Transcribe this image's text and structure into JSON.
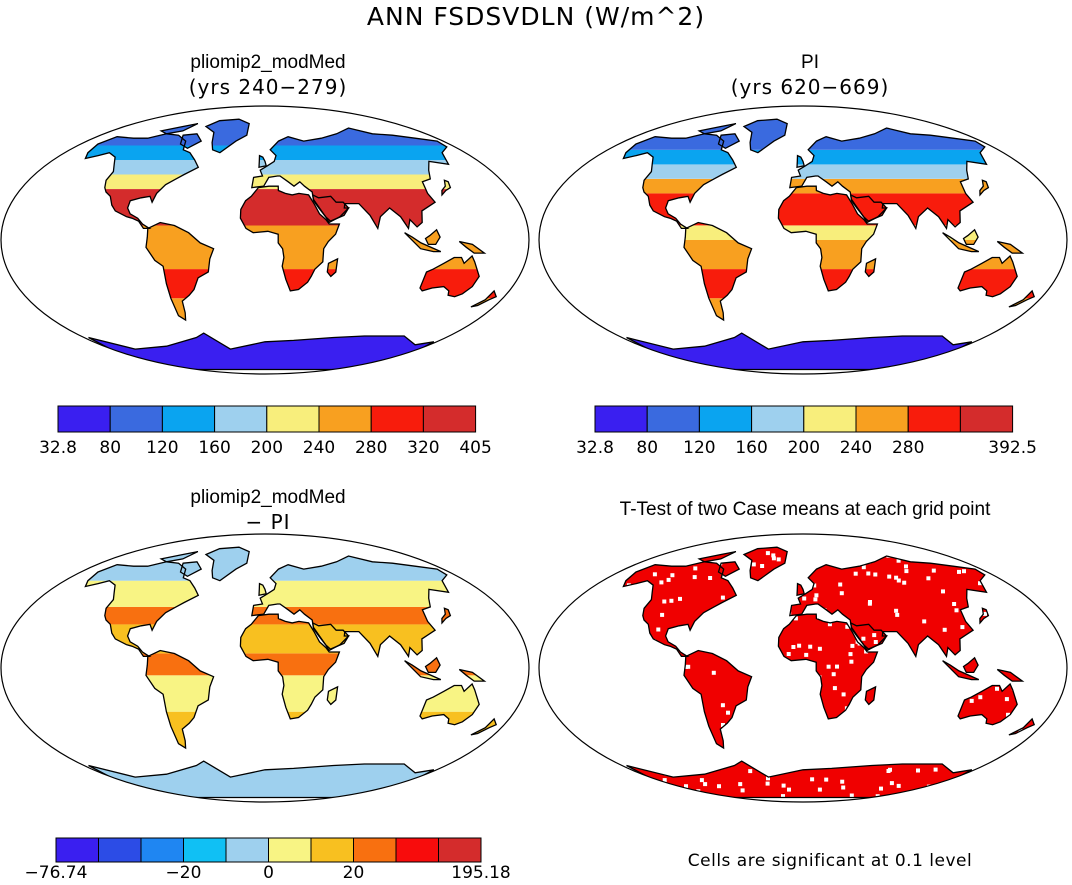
{
  "main_title": "ANN FSDSVDLN (W/m^2)",
  "chart_data": [
    {
      "type": "heatmap",
      "title": "pliomip2_modMed",
      "subtitle": "(yrs 240−279)",
      "colorbar": {
        "tick_labels": [
          "32.8",
          "80",
          "120",
          "160",
          "200",
          "240",
          "280",
          "320",
          "405"
        ],
        "colors": [
          "#3a1ff0",
          "#3a6adf",
          "#0aa4f0",
          "#9ed0ee",
          "#f8ee7c",
          "#f8a020",
          "#f81c0c",
          "#d42c2c"
        ]
      }
    },
    {
      "type": "heatmap",
      "title": "PI",
      "subtitle": "(yrs 620−669)",
      "colorbar": {
        "tick_labels": [
          "32.8",
          "80",
          "120",
          "160",
          "200",
          "240",
          "280",
          "",
          "392.5"
        ],
        "colors": [
          "#3a1ff0",
          "#3a6adf",
          "#0aa4f0",
          "#9ed0ee",
          "#f8ee7c",
          "#f8a020",
          "#f81c0c",
          "#d42c2c"
        ]
      }
    },
    {
      "type": "heatmap",
      "title": "pliomip2_modMed",
      "subtitle": "− PI",
      "colorbar": {
        "tick_labels": [
          "−76.74",
          "",
          "",
          "−20",
          "",
          "0",
          "",
          "20",
          "",
          "",
          "195.18"
        ],
        "colors": [
          "#3a1ff0",
          "#2c4ce6",
          "#1f86f2",
          "#10c0f4",
          "#9ed0ee",
          "#f8f484",
          "#f8c020",
          "#f87010",
          "#f80c0c",
          "#d42c2c"
        ]
      }
    },
    {
      "type": "heatmap",
      "title": "T-Test of two Case means at each grid point",
      "note": "Cells are significant at 0.1 level",
      "colors": {
        "significant": "#f00000"
      }
    }
  ]
}
